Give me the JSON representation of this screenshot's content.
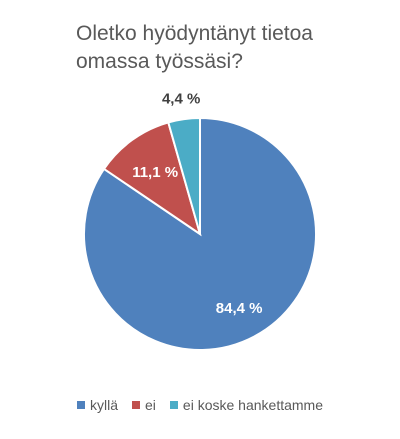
{
  "chart_data": {
    "type": "pie",
    "title": "Oletko hyödyntänyt tietoa omassa työssäsi?",
    "categories": [
      "kyllä",
      "ei",
      "ei koske hankettamme"
    ],
    "values": [
      84.4,
      11.1,
      4.4
    ],
    "data_labels": [
      "84,4 %",
      "11,1 %",
      "4,4 %"
    ],
    "colors": [
      "#4F81BD",
      "#C0504D",
      "#4BACC6"
    ],
    "start_angle": "12 o'clock",
    "direction": "clockwise",
    "legend_position": "bottom"
  }
}
